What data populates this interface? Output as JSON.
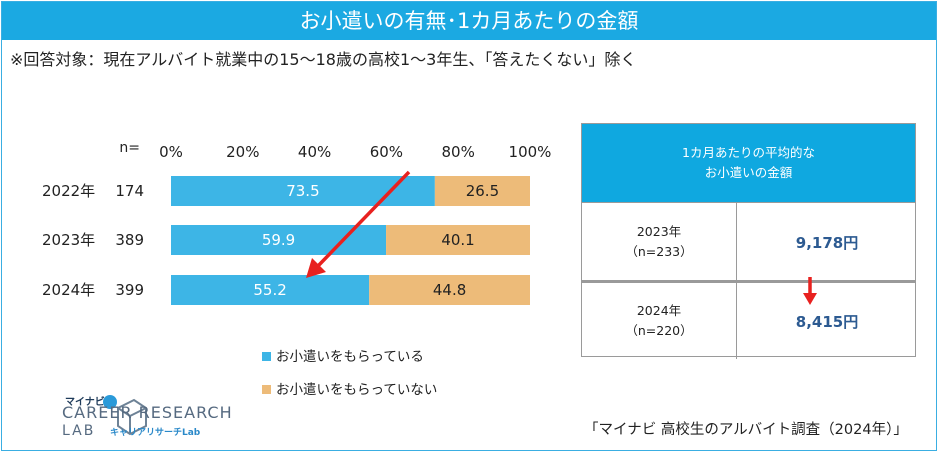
{
  "title": "お小遣いの有無･1カ月あたりの金額",
  "note": "※回答対象：現在アルバイト就業中の15～18歳の高校1～3年生、「答えたくない」除く",
  "chart_data": {
    "type": "bar",
    "orientation": "horizontal",
    "stacked": true,
    "percent": true,
    "n_label": "n=",
    "x_ticks": [
      "0%",
      "20%",
      "40%",
      "60%",
      "80%",
      "100%"
    ],
    "categories": [
      "2022年",
      "2023年",
      "2024年"
    ],
    "n_values": [
      "174",
      "389",
      "399"
    ],
    "series": [
      {
        "name": "お小遣いをもらっている",
        "values": [
          73.5,
          59.9,
          55.2
        ],
        "color": "#3db5e6"
      },
      {
        "name": "お小遣いをもらっていない",
        "values": [
          26.5,
          40.1,
          44.8
        ],
        "color": "#edbb79"
      }
    ],
    "xlim": [
      0,
      100
    ],
    "annotation": "red arrow indicating decrease from 2022 to 2024"
  },
  "table": {
    "header_line1": "1カ月あたりの平均的な",
    "header_line2": "お小遣いの金額",
    "rows": [
      {
        "year": "2023年",
        "n": "（n=233）",
        "value": "9,178円"
      },
      {
        "year": "2024年",
        "n": "（n=220）",
        "value": "8,415円"
      }
    ]
  },
  "logo": {
    "small": "マイナビ",
    "main": "CAREER RESEARCH",
    "sub": "LAB",
    "sub2": "キャリアリサーチLab"
  },
  "source": "「マイナビ 高校生のアルバイト調査（2024年）」",
  "colors": {
    "title_bg": "#1ba9e2",
    "arrow": "#e8211f",
    "value_text": "#2c5a91"
  }
}
